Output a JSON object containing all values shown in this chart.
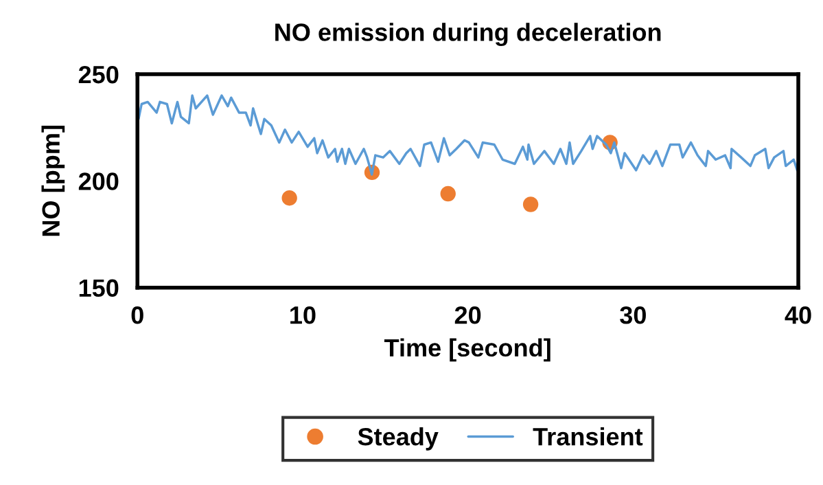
{
  "chart_data": {
    "type": "line",
    "title": "NO emission during deceleration",
    "xlabel": "Time [second]",
    "ylabel": "NO [ppm]",
    "xlim": [
      0,
      40
    ],
    "xticks": [
      0,
      10,
      20,
      30,
      40
    ],
    "ylim": [
      150,
      250
    ],
    "yticks": [
      150,
      200,
      250
    ],
    "grid": false,
    "legend": "bottom",
    "series": [
      {
        "name": "Steady",
        "type": "scatter",
        "marker": "circle",
        "color": "#ed7d31",
        "x": [
          9.2,
          14.2,
          18.8,
          23.8,
          28.6
        ],
        "values": [
          192,
          204,
          194,
          189,
          218
        ]
      },
      {
        "name": "Transient",
        "marker": "none",
        "color": "#5b9bd5",
        "x": [
          0.07,
          0.25,
          0.62,
          1.16,
          1.36,
          1.79,
          2.08,
          2.42,
          2.63,
          3.11,
          3.32,
          3.53,
          4.22,
          4.57,
          5.1,
          5.47,
          5.67,
          6.15,
          6.56,
          6.85,
          7.0,
          7.27,
          7.47,
          7.68,
          8.1,
          8.58,
          8.93,
          9.34,
          9.76,
          10.3,
          10.7,
          10.88,
          11.2,
          11.55,
          11.96,
          12.1,
          12.38,
          12.58,
          12.8,
          13.2,
          13.7,
          13.9,
          14.19,
          14.4,
          14.87,
          15.28,
          15.85,
          16.27,
          16.53,
          17.1,
          17.36,
          17.77,
          18.2,
          18.55,
          18.9,
          19.3,
          19.8,
          20.06,
          20.63,
          20.9,
          21.6,
          22.1,
          22.84,
          23.33,
          23.6,
          23.67,
          24.0,
          24.63,
          25.2,
          25.6,
          25.96,
          26.16,
          26.37,
          26.86,
          27.4,
          27.55,
          27.82,
          28.37,
          28.65,
          28.86,
          29.28,
          29.49,
          30.18,
          30.6,
          31.0,
          31.4,
          31.77,
          32.25,
          32.8,
          33.0,
          33.5,
          33.9,
          34.4,
          34.54,
          35.0,
          35.57,
          35.9,
          35.96,
          36.54,
          37.1,
          37.37,
          38.0,
          38.2,
          38.54,
          39.1,
          39.24,
          39.72,
          39.93,
          40.0
        ],
        "values": [
          229,
          236,
          237,
          232,
          237,
          236,
          227,
          237,
          230,
          227,
          240,
          234,
          240,
          231,
          240,
          235,
          239,
          232,
          232,
          226,
          234,
          227,
          222,
          229,
          226,
          218,
          224,
          218,
          223,
          216,
          220,
          213,
          219,
          211,
          215,
          209,
          215,
          208,
          215,
          208,
          215,
          211,
          203,
          212,
          211,
          214,
          208,
          213,
          215,
          207,
          217,
          218,
          209,
          220,
          212,
          215,
          219,
          218,
          211,
          218,
          217,
          210,
          208,
          216,
          210,
          217,
          208,
          214,
          208,
          215,
          208,
          218,
          208,
          214,
          221,
          215,
          221,
          217,
          213,
          218,
          206,
          213,
          205,
          212,
          208,
          214,
          207,
          217,
          217,
          211,
          218,
          212,
          207,
          214,
          210,
          212,
          206,
          215,
          211,
          207,
          212,
          215,
          206,
          211,
          214,
          207,
          210,
          205,
          210
        ]
      }
    ]
  }
}
